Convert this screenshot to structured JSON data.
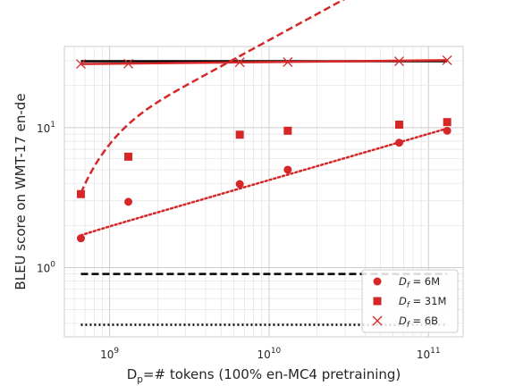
{
  "chart_data": {
    "type": "scatter",
    "xscale": "log",
    "yscale": "log",
    "xlim": [
      520000000.0,
      165000000000.0
    ],
    "ylim": [
      0.32,
      38
    ],
    "grid": true,
    "legend_position": "lower-right",
    "xlabel": {
      "pre": "D",
      "sub": "p",
      "post": "=# tokens (100% en-MC4 pretraining)"
    },
    "ylabel": "BLEU score on WMT-17 en-de",
    "xticks": [
      {
        "value": 1000000000.0,
        "base": "10",
        "exp": "9"
      },
      {
        "value": 10000000000.0,
        "base": "10",
        "exp": "10"
      },
      {
        "value": 100000000000.0,
        "base": "10",
        "exp": "11"
      }
    ],
    "yticks": [
      {
        "value": 1,
        "base": "10",
        "exp": "0"
      },
      {
        "value": 10,
        "base": "10",
        "exp": "1"
      }
    ],
    "series": [
      {
        "name": {
          "pre": "D",
          "sub": "f",
          "post": " = 6M"
        },
        "marker": "circle",
        "color": "#d62728",
        "x": [
          660000000.0,
          1310000000.0,
          6550000000.0,
          13100000000.0,
          65500000000.0,
          131000000000.0
        ],
        "y": [
          1.62,
          2.95,
          3.95,
          5.0,
          7.8,
          9.5
        ],
        "fit": {
          "style": "dotted",
          "x": [
            660000000.0,
            131000000000.0
          ],
          "a": 1.7,
          "b": 0.33,
          "c": 0.012,
          "d": 3.0
        }
      },
      {
        "name": {
          "pre": "D",
          "sub": "f",
          "post": " = 31M"
        },
        "marker": "square",
        "color": "#d62728",
        "x": [
          660000000.0,
          1310000000.0,
          6550000000.0,
          13100000000.0,
          65500000000.0,
          131000000000.0
        ],
        "y": [
          3.35,
          6.2,
          8.9,
          9.5,
          10.5,
          10.95
        ],
        "fit": {
          "style": "dashed",
          "x": [
            660000000.0,
            131000000000.0
          ],
          "a": 3.4,
          "b": 0.62,
          "c": 1.3,
          "d": 1.6
        }
      },
      {
        "name": {
          "pre": "D",
          "sub": "f",
          "post": " = 6B"
        },
        "marker": "x",
        "color": "#d62728",
        "x": [
          660000000.0,
          1310000000.0,
          6550000000.0,
          13100000000.0,
          65500000000.0,
          131000000000.0
        ],
        "y": [
          28.5,
          28.6,
          29.3,
          29.4,
          29.8,
          30.3
        ],
        "fit": {
          "style": "solid",
          "x": [
            660000000.0,
            131000000000.0
          ],
          "y": [
            28.5,
            30.3
          ]
        }
      }
    ],
    "reference_lines": [
      {
        "style": "solid",
        "color": "#000000",
        "y": 29.8,
        "x": [
          660000000.0,
          131000000000.0
        ]
      },
      {
        "style": "dashed",
        "color": "#000000",
        "y": 0.9,
        "x": [
          660000000.0,
          131000000000.0
        ]
      },
      {
        "style": "dotted",
        "color": "#000000",
        "y": 0.39,
        "x": [
          660000000.0,
          131000000000.0
        ]
      }
    ]
  }
}
